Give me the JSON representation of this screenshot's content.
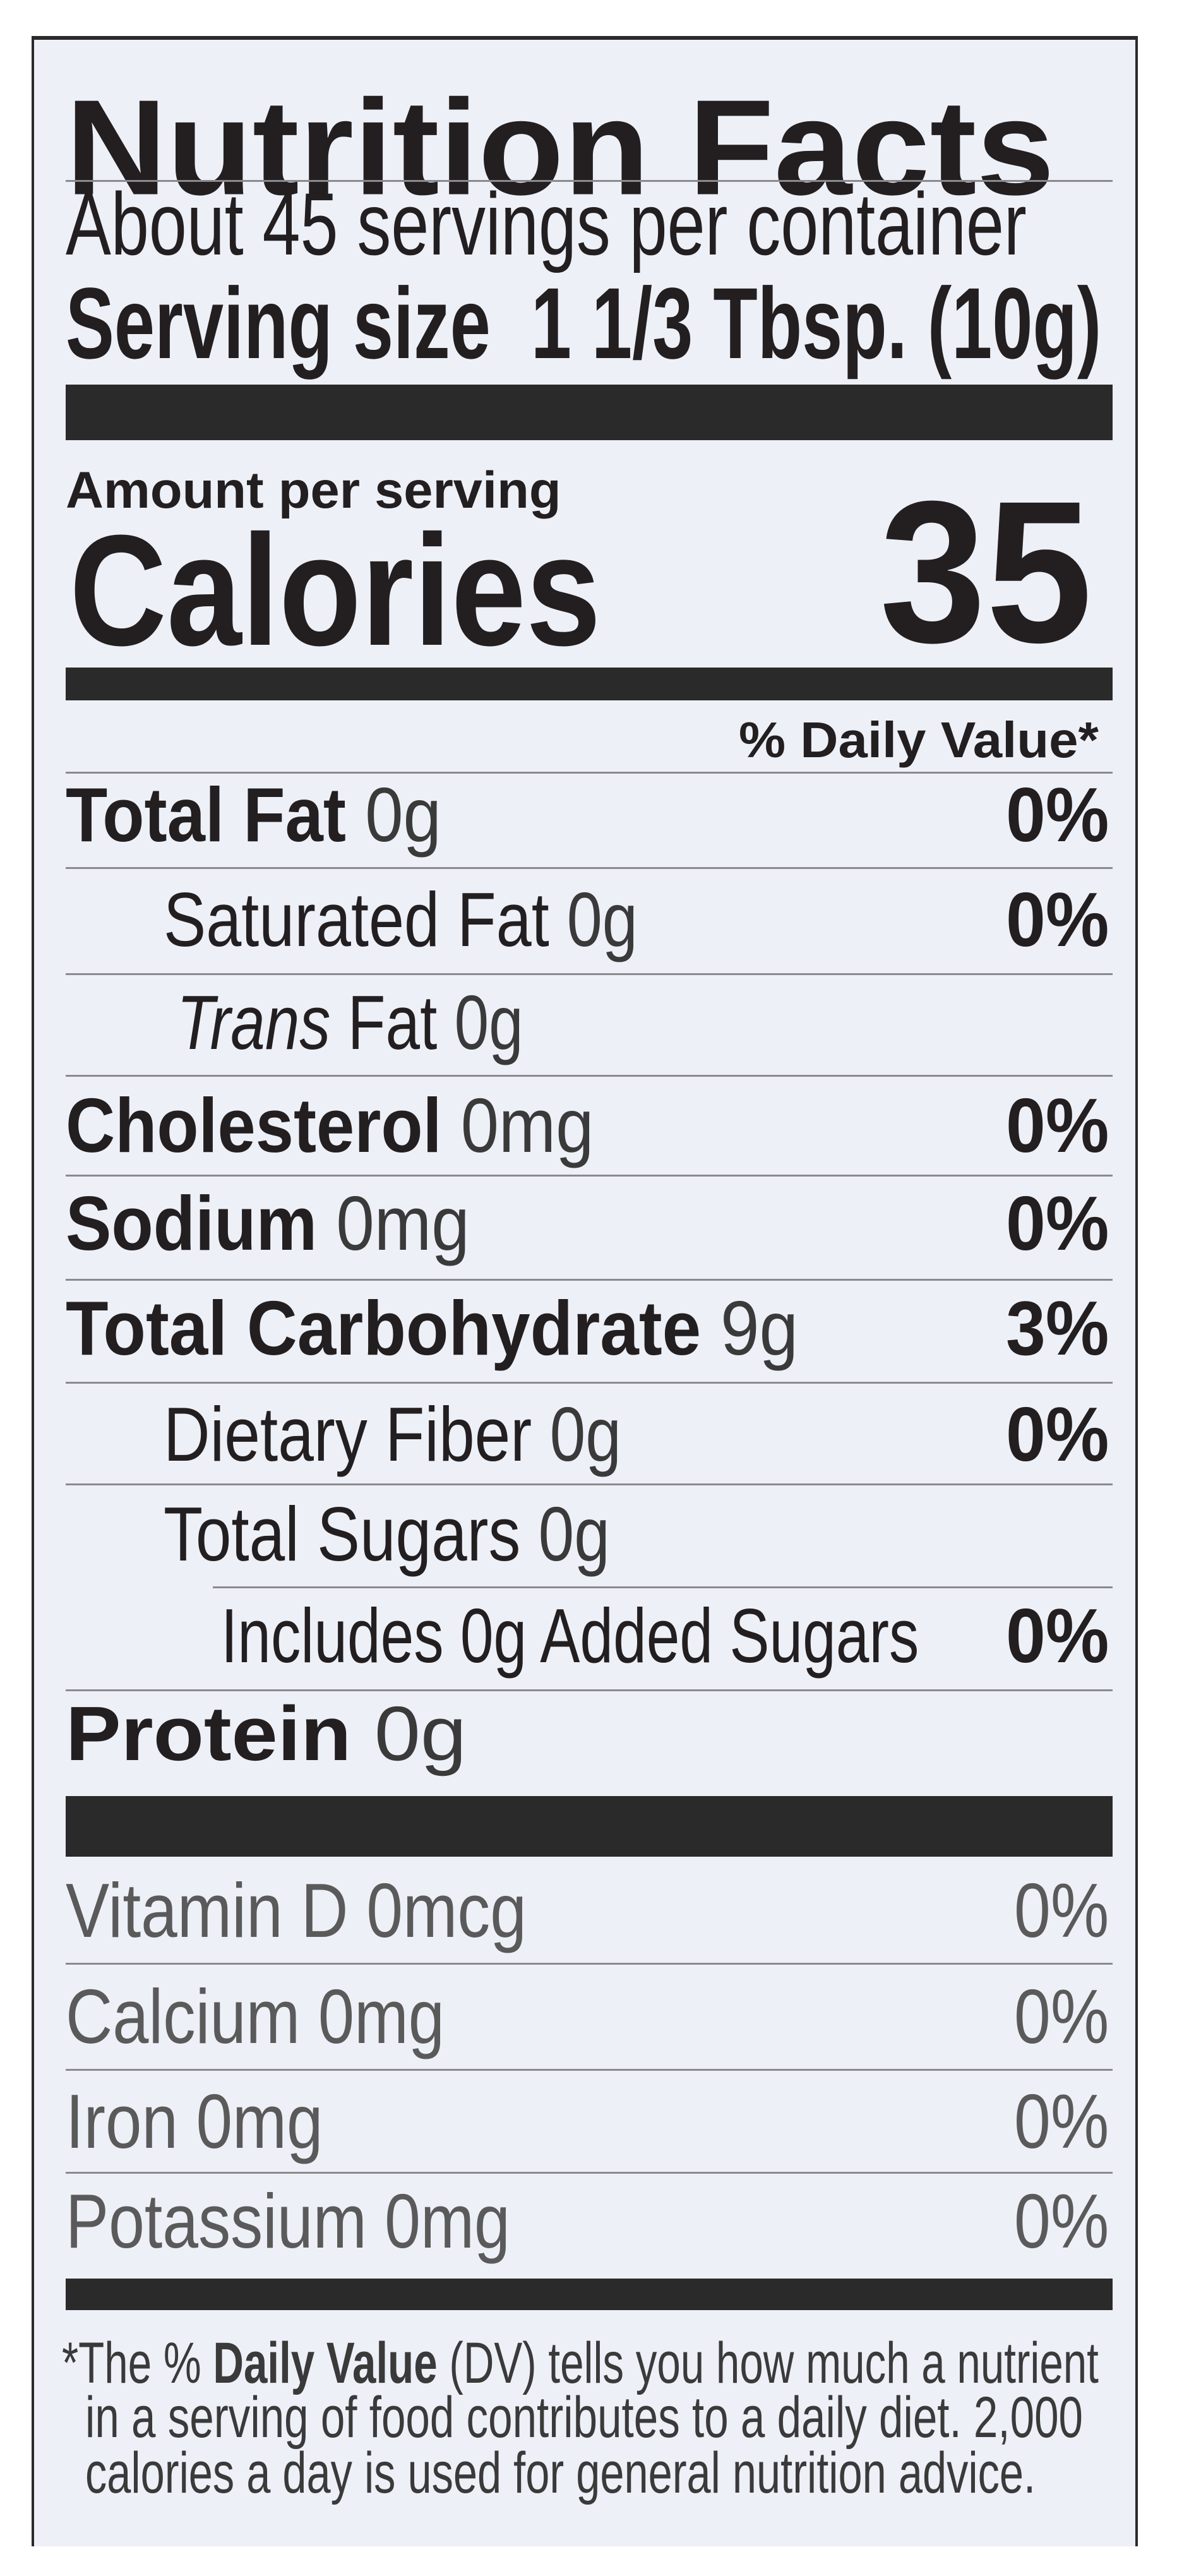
{
  "label": {
    "title": "Nutrition Facts",
    "servings_per_container": "About 45 servings per container",
    "serving_size_label": "Serving size",
    "serving_size_value": "1 1/3 Tbsp. (10g)",
    "amount_per_serving": "Amount per serving",
    "calories_label": "Calories",
    "calories_value": "35",
    "daily_value_header": "% Daily Value*",
    "nutrients": [
      {
        "name": "Total Fat",
        "amount": "0g",
        "dv": "0%",
        "style": "bold"
      },
      {
        "name": "Saturated Fat",
        "amount": "0g",
        "dv": "0%",
        "style": "sub"
      },
      {
        "name": "Trans",
        "name_suffix": "Fat",
        "amount": "0g",
        "dv": "",
        "style": "sub-italic"
      },
      {
        "name": "Cholesterol",
        "amount": "0mg",
        "dv": "0%",
        "style": "bold"
      },
      {
        "name": "Sodium",
        "amount": "0mg",
        "dv": "0%",
        "style": "bold"
      },
      {
        "name": "Total Carbohydrate",
        "amount": "9g",
        "dv": "3%",
        "style": "bold"
      },
      {
        "name": "Dietary Fiber",
        "amount": "0g",
        "dv": "0%",
        "style": "sub"
      },
      {
        "name": "Total Sugars",
        "amount": "0g",
        "dv": "",
        "style": "sub"
      },
      {
        "name": "Includes 0g Added Sugars",
        "amount": "",
        "dv": "0%",
        "style": "subsub"
      },
      {
        "name": "Protein",
        "amount": "0g",
        "dv": "",
        "style": "bold"
      }
    ],
    "vitamins": [
      {
        "name": "Vitamin D",
        "amount": "0mcg",
        "dv": "0%"
      },
      {
        "name": "Calcium",
        "amount": "0mg",
        "dv": "0%"
      },
      {
        "name": "Iron",
        "amount": "0mg",
        "dv": "0%"
      },
      {
        "name": "Potassium",
        "amount": "0mg",
        "dv": "0%"
      }
    ],
    "footnote": {
      "asterisk_the": "*The %",
      "daily_value": "Daily Value",
      "line1_rest": "(DV) tells you how much a nutrient",
      "line2": "in a serving of food contributes to a daily diet. 2,000",
      "line3": "calories a day is used for general nutrition advice."
    }
  },
  "colors": {
    "ink": "#231f20",
    "panel_background": "#eef0f8",
    "light_ink": "#5a5a5a"
  }
}
